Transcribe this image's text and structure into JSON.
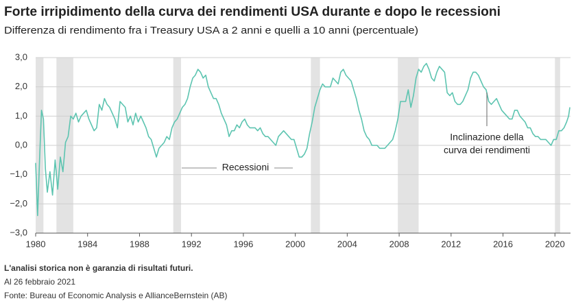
{
  "chart_data": {
    "type": "line",
    "title": "Forte irripidimento della curva dei rendimenti USA durante e dopo le recessioni",
    "subtitle": "Differenza di rendimento fra i Treasury USA a 2 anni e quelli a 10 anni (percentuale)",
    "color": "#5cc4b0",
    "recession_color": "#e3e3e3",
    "grid": true,
    "xlim": [
      1980,
      2021.2
    ],
    "ylim": [
      -3,
      3
    ],
    "xticks": [
      1980,
      1984,
      1988,
      1992,
      1996,
      2000,
      2004,
      2008,
      2012,
      2016,
      2020
    ],
    "yticks": [
      {
        "value": -3,
        "label": "−3,0"
      },
      {
        "value": -2,
        "label": "−2,0"
      },
      {
        "value": -1,
        "label": "−1,0"
      },
      {
        "value": 0,
        "label": "0,0"
      },
      {
        "value": 1,
        "label": "1,0"
      },
      {
        "value": 2,
        "label": "2,0"
      },
      {
        "value": 3,
        "label": "3,0"
      }
    ],
    "recessions": [
      [
        1980.0,
        1980.6
      ],
      [
        1981.6,
        1982.9
      ],
      [
        1990.6,
        1991.2
      ],
      [
        2001.2,
        2001.9
      ],
      [
        2007.9,
        2009.5
      ],
      [
        2020.0,
        2020.4
      ]
    ],
    "recession_label": "Recessioni",
    "line_label": [
      "Inclinazione della",
      "curva dei rendimenti"
    ],
    "x": [
      1980.0,
      1980.15,
      1980.3,
      1980.45,
      1980.6,
      1980.75,
      1980.9,
      1981.1,
      1981.3,
      1981.5,
      1981.7,
      1981.9,
      1982.1,
      1982.3,
      1982.5,
      1982.7,
      1982.9,
      1983.1,
      1983.3,
      1983.5,
      1983.7,
      1983.9,
      1984.1,
      1984.3,
      1984.5,
      1984.7,
      1984.9,
      1985.1,
      1985.3,
      1985.5,
      1985.7,
      1985.9,
      1986.1,
      1986.3,
      1986.5,
      1986.7,
      1986.9,
      1987.1,
      1987.3,
      1987.5,
      1987.7,
      1987.9,
      1988.1,
      1988.3,
      1988.5,
      1988.7,
      1988.9,
      1989.1,
      1989.3,
      1989.5,
      1989.7,
      1989.9,
      1990.1,
      1990.3,
      1990.5,
      1990.7,
      1990.9,
      1991.1,
      1991.3,
      1991.5,
      1991.7,
      1991.9,
      1992.1,
      1992.3,
      1992.5,
      1992.7,
      1992.9,
      1993.1,
      1993.3,
      1993.5,
      1993.7,
      1993.9,
      1994.1,
      1994.3,
      1994.5,
      1994.7,
      1994.9,
      1995.1,
      1995.3,
      1995.5,
      1995.7,
      1995.9,
      1996.1,
      1996.3,
      1996.5,
      1996.7,
      1996.9,
      1997.1,
      1997.3,
      1997.5,
      1997.7,
      1997.9,
      1998.1,
      1998.3,
      1998.5,
      1998.7,
      1998.9,
      1999.1,
      1999.3,
      1999.5,
      1999.7,
      1999.9,
      2000.1,
      2000.3,
      2000.5,
      2000.7,
      2000.9,
      2001.1,
      2001.3,
      2001.5,
      2001.7,
      2001.9,
      2002.1,
      2002.3,
      2002.5,
      2002.7,
      2002.9,
      2003.1,
      2003.3,
      2003.5,
      2003.7,
      2003.9,
      2004.1,
      2004.3,
      2004.5,
      2004.7,
      2004.9,
      2005.1,
      2005.3,
      2005.5,
      2005.7,
      2005.9,
      2006.1,
      2006.3,
      2006.5,
      2006.7,
      2006.9,
      2007.1,
      2007.3,
      2007.5,
      2007.7,
      2007.9,
      2008.1,
      2008.3,
      2008.5,
      2008.7,
      2008.9,
      2009.1,
      2009.3,
      2009.5,
      2009.7,
      2009.9,
      2010.1,
      2010.3,
      2010.5,
      2010.7,
      2010.9,
      2011.1,
      2011.3,
      2011.5,
      2011.7,
      2011.9,
      2012.1,
      2012.3,
      2012.5,
      2012.7,
      2012.9,
      2013.1,
      2013.3,
      2013.5,
      2013.7,
      2013.9,
      2014.1,
      2014.3,
      2014.5,
      2014.7,
      2014.9,
      2015.1,
      2015.3,
      2015.5,
      2015.7,
      2015.9,
      2016.1,
      2016.3,
      2016.5,
      2016.7,
      2016.9,
      2017.1,
      2017.3,
      2017.5,
      2017.7,
      2017.9,
      2018.1,
      2018.3,
      2018.5,
      2018.7,
      2018.9,
      2019.1,
      2019.3,
      2019.5,
      2019.7,
      2019.9,
      2020.1,
      2020.3,
      2020.5,
      2020.7,
      2020.9,
      2021.05,
      2021.15
    ],
    "values": [
      -0.6,
      -2.4,
      -0.5,
      1.2,
      0.9,
      -0.8,
      -1.6,
      -0.9,
      -1.7,
      -0.5,
      -1.5,
      -0.4,
      -0.9,
      0.1,
      0.3,
      1.0,
      0.9,
      1.1,
      0.8,
      1.0,
      1.1,
      1.2,
      0.9,
      0.7,
      0.5,
      0.6,
      1.4,
      1.2,
      1.6,
      1.4,
      1.3,
      1.1,
      0.9,
      0.6,
      1.5,
      1.4,
      1.3,
      0.8,
      1.0,
      0.7,
      1.1,
      0.8,
      1.0,
      0.8,
      0.6,
      0.3,
      0.2,
      -0.1,
      -0.4,
      -0.1,
      0.0,
      0.1,
      0.3,
      0.2,
      0.6,
      0.8,
      0.9,
      1.1,
      1.3,
      1.4,
      1.6,
      2.0,
      2.3,
      2.4,
      2.6,
      2.5,
      2.3,
      2.4,
      2.0,
      1.8,
      1.6,
      1.6,
      1.4,
      1.1,
      0.9,
      0.7,
      0.3,
      0.5,
      0.5,
      0.7,
      0.6,
      0.8,
      0.9,
      0.7,
      0.6,
      0.6,
      0.6,
      0.5,
      0.6,
      0.4,
      0.3,
      0.3,
      0.2,
      0.1,
      0.0,
      0.3,
      0.4,
      0.5,
      0.4,
      0.3,
      0.2,
      0.2,
      -0.1,
      -0.4,
      -0.4,
      -0.3,
      -0.1,
      0.4,
      0.8,
      1.3,
      1.6,
      1.9,
      2.1,
      2.0,
      2.0,
      2.0,
      2.3,
      2.2,
      2.1,
      2.5,
      2.6,
      2.4,
      2.3,
      2.2,
      1.9,
      1.6,
      1.2,
      0.9,
      0.5,
      0.3,
      0.2,
      0.0,
      0.0,
      0.0,
      -0.1,
      -0.1,
      -0.1,
      0.0,
      0.1,
      0.2,
      0.5,
      0.9,
      1.5,
      1.5,
      1.5,
      1.9,
      1.3,
      1.7,
      2.3,
      2.6,
      2.5,
      2.7,
      2.8,
      2.6,
      2.3,
      2.2,
      2.5,
      2.7,
      2.6,
      2.5,
      1.8,
      1.7,
      1.8,
      1.5,
      1.4,
      1.4,
      1.5,
      1.7,
      1.9,
      2.3,
      2.5,
      2.5,
      2.4,
      2.2,
      2.0,
      1.9,
      1.5,
      1.4,
      1.5,
      1.6,
      1.4,
      1.2,
      1.1,
      1.0,
      0.9,
      0.9,
      1.2,
      1.2,
      1.0,
      0.9,
      0.8,
      0.6,
      0.6,
      0.4,
      0.3,
      0.3,
      0.2,
      0.2,
      0.2,
      0.1,
      0.0,
      0.2,
      0.2,
      0.5,
      0.5,
      0.6,
      0.8,
      1.0,
      1.3
    ]
  },
  "notes": {
    "disclaimer": "L'analisi storica non è garanzia di risultati futuri.",
    "date": "Al 26 febbraio 2021",
    "source": "Fonte: Bureau of Economic Analysis e AllianceBernstein (AB)"
  }
}
